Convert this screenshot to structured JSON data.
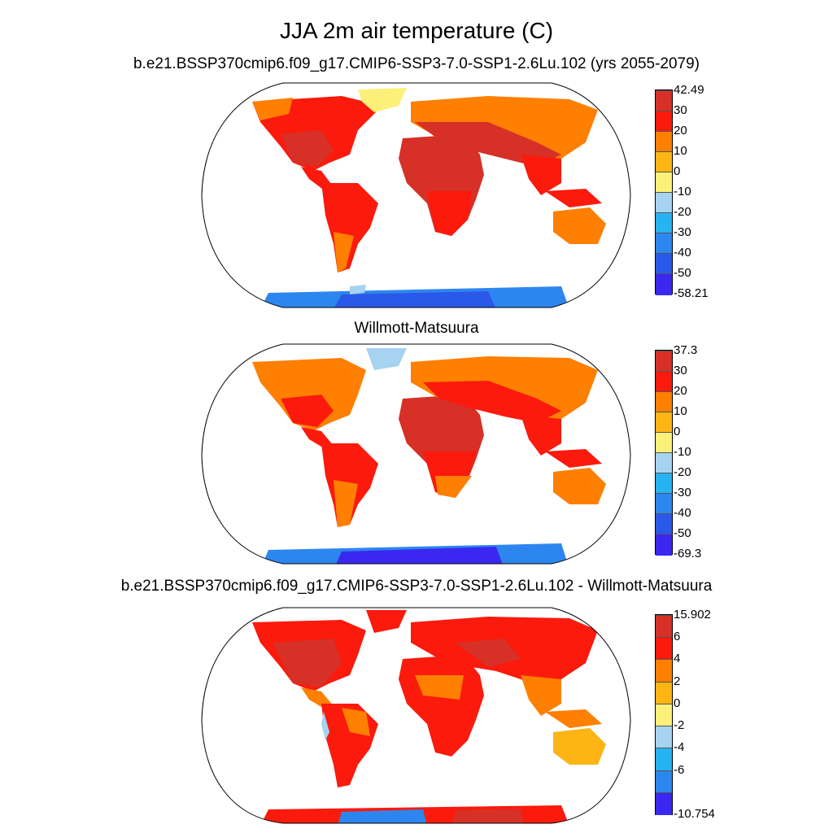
{
  "title": "JJA 2m air temperature (C)",
  "panels": [
    {
      "title": "b.e21.BSSP370cmip6.f09_g17.CMIP6-SSP3-7.0-SSP1-2.6Lu.102 (yrs 2055-2079)",
      "colorbar": {
        "labels": [
          "42.49",
          "30",
          "20",
          "10",
          "0",
          "-10",
          "-20",
          "-30",
          "-40",
          "-50",
          "-58.21"
        ],
        "colors": [
          "#d73027",
          "#fb1a0c",
          "#ff7f00",
          "#fdb415",
          "#fdf07a",
          "#a6d3f0",
          "#27b3f2",
          "#2d86f0",
          "#2a58e8",
          "#3a28f0"
        ]
      }
    },
    {
      "title": "Willmott-Matsuura",
      "colorbar": {
        "labels": [
          "37.3",
          "30",
          "20",
          "10",
          "0",
          "-10",
          "-20",
          "-30",
          "-40",
          "-50",
          "-69.3"
        ],
        "colors": [
          "#d73027",
          "#fb1a0c",
          "#ff7f00",
          "#fdb415",
          "#fdf07a",
          "#a6d3f0",
          "#27b3f2",
          "#2d86f0",
          "#2a58e8",
          "#3a28f0"
        ]
      }
    },
    {
      "title": "b.e21.BSSP370cmip6.f09_g17.CMIP6-SSP3-7.0-SSP1-2.6Lu.102 - Willmott-Matsuura",
      "colorbar": {
        "labels": [
          "15.902",
          "6",
          "4",
          "2",
          "0",
          "-2",
          "-4",
          "-6",
          "-10.754"
        ],
        "colors": [
          "#d73027",
          "#fb1a0c",
          "#ff7f00",
          "#fdb415",
          "#fdf07a",
          "#a6d3f0",
          "#27b3f2",
          "#2d86f0",
          "#3a28f0"
        ]
      }
    }
  ]
}
